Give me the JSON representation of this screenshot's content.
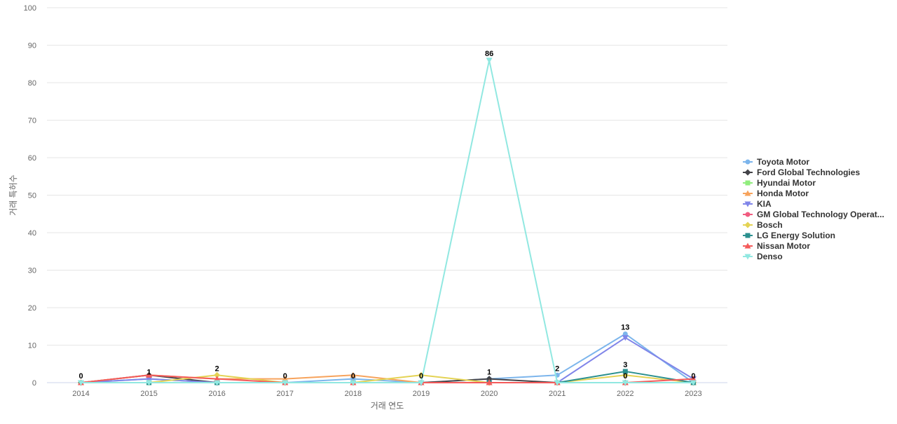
{
  "chart_data": {
    "type": "line",
    "title": "",
    "xlabel": "거래 연도",
    "ylabel": "거래 특허수",
    "x": [
      "2014",
      "2015",
      "2016",
      "2017",
      "2018",
      "2019",
      "2020",
      "2021",
      "2022",
      "2023"
    ],
    "ylim": [
      0,
      100
    ],
    "yticks": [
      "0",
      "10",
      "20",
      "30",
      "40",
      "50",
      "60",
      "70",
      "80",
      "90",
      "100"
    ],
    "grid": true,
    "legend_position": "right",
    "series": [
      {
        "name": "Toyota Motor",
        "color": "#7cb5ec",
        "marker": "circle",
        "values": [
          0,
          1,
          0,
          0,
          1,
          0,
          1,
          2,
          13,
          0
        ]
      },
      {
        "name": "Ford Global Technologies",
        "color": "#434348",
        "marker": "diamond",
        "values": [
          0,
          2,
          0,
          0,
          0,
          0,
          1,
          0,
          0,
          0
        ]
      },
      {
        "name": "Hyundai Motor",
        "color": "#90ed7d",
        "marker": "square",
        "values": [
          0,
          0,
          0,
          0,
          0,
          0,
          0,
          0,
          0,
          0
        ]
      },
      {
        "name": "Honda Motor",
        "color": "#f7a35c",
        "marker": "triangle",
        "values": [
          0,
          2,
          1,
          1,
          2,
          0,
          0,
          0,
          0,
          0
        ]
      },
      {
        "name": "KIA",
        "color": "#8085e9",
        "marker": "triangle-down",
        "values": [
          0,
          1,
          0,
          0,
          0,
          0,
          0,
          0,
          12,
          1
        ]
      },
      {
        "name": "GM Global Technology Operat...",
        "color": "#f15c80",
        "marker": "circle",
        "values": [
          0,
          0,
          0,
          0,
          0,
          0,
          0,
          0,
          0,
          0
        ]
      },
      {
        "name": "Bosch",
        "color": "#e4d354",
        "marker": "diamond",
        "values": [
          0,
          0,
          2,
          0,
          0,
          2,
          0,
          0,
          2,
          0
        ]
      },
      {
        "name": "LG Energy Solution",
        "color": "#2b908f",
        "marker": "square",
        "values": [
          0,
          0,
          0,
          0,
          0,
          0,
          0,
          0,
          3,
          0
        ]
      },
      {
        "name": "Nissan Motor",
        "color": "#f45b5b",
        "marker": "triangle",
        "values": [
          0,
          2,
          1,
          0,
          0,
          0,
          0,
          0,
          0,
          1
        ]
      },
      {
        "name": "Denso",
        "color": "#91e8e1",
        "marker": "triangle-down",
        "values": [
          0,
          0,
          0,
          0,
          0,
          0,
          86,
          0,
          0,
          0
        ]
      }
    ],
    "data_labels": [
      {
        "x": "2014",
        "text": "0"
      },
      {
        "x": "2015",
        "text": "1"
      },
      {
        "x": "2016",
        "text": "2"
      },
      {
        "x": "2017",
        "text": "0"
      },
      {
        "x": "2018",
        "text": "0"
      },
      {
        "x": "2019",
        "text": "0"
      },
      {
        "x": "2020",
        "text": "86"
      },
      {
        "x": "2020",
        "text": "1"
      },
      {
        "x": "2021",
        "text": "2"
      },
      {
        "x": "2022",
        "text": "13"
      },
      {
        "x": "2022",
        "text": "3"
      },
      {
        "x": "2022",
        "text": "0"
      },
      {
        "x": "2023",
        "text": "0"
      }
    ]
  }
}
